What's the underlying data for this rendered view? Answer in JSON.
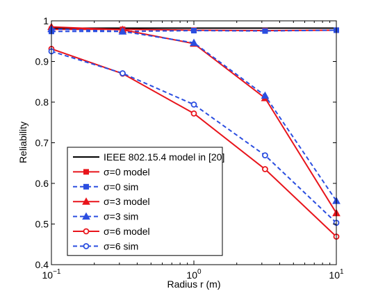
{
  "chart_data": {
    "type": "line",
    "title": "",
    "xlabel": "Radius r (m)",
    "ylabel": "Reliability",
    "x_scale": "log",
    "xlim": [
      0.1,
      10
    ],
    "ylim": [
      0.4,
      1.0
    ],
    "x_ticks": [
      {
        "value": 0.1,
        "base": "10",
        "exp": "−1"
      },
      {
        "value": 1,
        "base": "10",
        "exp": "0"
      },
      {
        "value": 10,
        "base": "10",
        "exp": "1"
      }
    ],
    "y_ticks": [
      {
        "value": 0.4,
        "label": "0.4"
      },
      {
        "value": 0.5,
        "label": "0.5"
      },
      {
        "value": 0.6,
        "label": "0.6"
      },
      {
        "value": 0.7,
        "label": "0.7"
      },
      {
        "value": 0.8,
        "label": "0.8"
      },
      {
        "value": 0.9,
        "label": "0.9"
      },
      {
        "value": 1.0,
        "label": "1"
      }
    ],
    "grid": false,
    "legend_position": "lower-left",
    "x": [
      0.1,
      0.316,
      1,
      3.16,
      10
    ],
    "series": [
      {
        "name": "IEEE 802.15.4 model in [20]",
        "color": "#000000",
        "dash": "solid",
        "marker": "none",
        "values": [
          0.982,
          0.982,
          0.982,
          0.982,
          0.982
        ]
      },
      {
        "name": "σ=0 model",
        "color": "#e8141b",
        "dash": "solid",
        "marker": "square",
        "values": [
          0.979,
          0.979,
          0.977,
          0.976,
          0.977
        ]
      },
      {
        "name": "σ=0 sim",
        "color": "#2b4ee0",
        "dash": "dashed",
        "marker": "square",
        "values": [
          0.974,
          0.974,
          0.976,
          0.975,
          0.977
        ]
      },
      {
        "name": "σ=3 model",
        "color": "#e8141b",
        "dash": "solid",
        "marker": "triangle",
        "values": [
          0.985,
          0.978,
          0.944,
          0.81,
          0.527
        ]
      },
      {
        "name": "σ=3 sim",
        "color": "#2b4ee0",
        "dash": "dashed",
        "marker": "triangle",
        "values": [
          0.98,
          0.974,
          0.946,
          0.816,
          0.557
        ]
      },
      {
        "name": "σ=6 model",
        "color": "#e8141b",
        "dash": "solid",
        "marker": "circle",
        "values": [
          0.931,
          0.87,
          0.772,
          0.635,
          0.469
        ]
      },
      {
        "name": "σ=6 sim",
        "color": "#2b4ee0",
        "dash": "dashed",
        "marker": "circle",
        "values": [
          0.925,
          0.871,
          0.794,
          0.669,
          0.503
        ]
      }
    ]
  }
}
